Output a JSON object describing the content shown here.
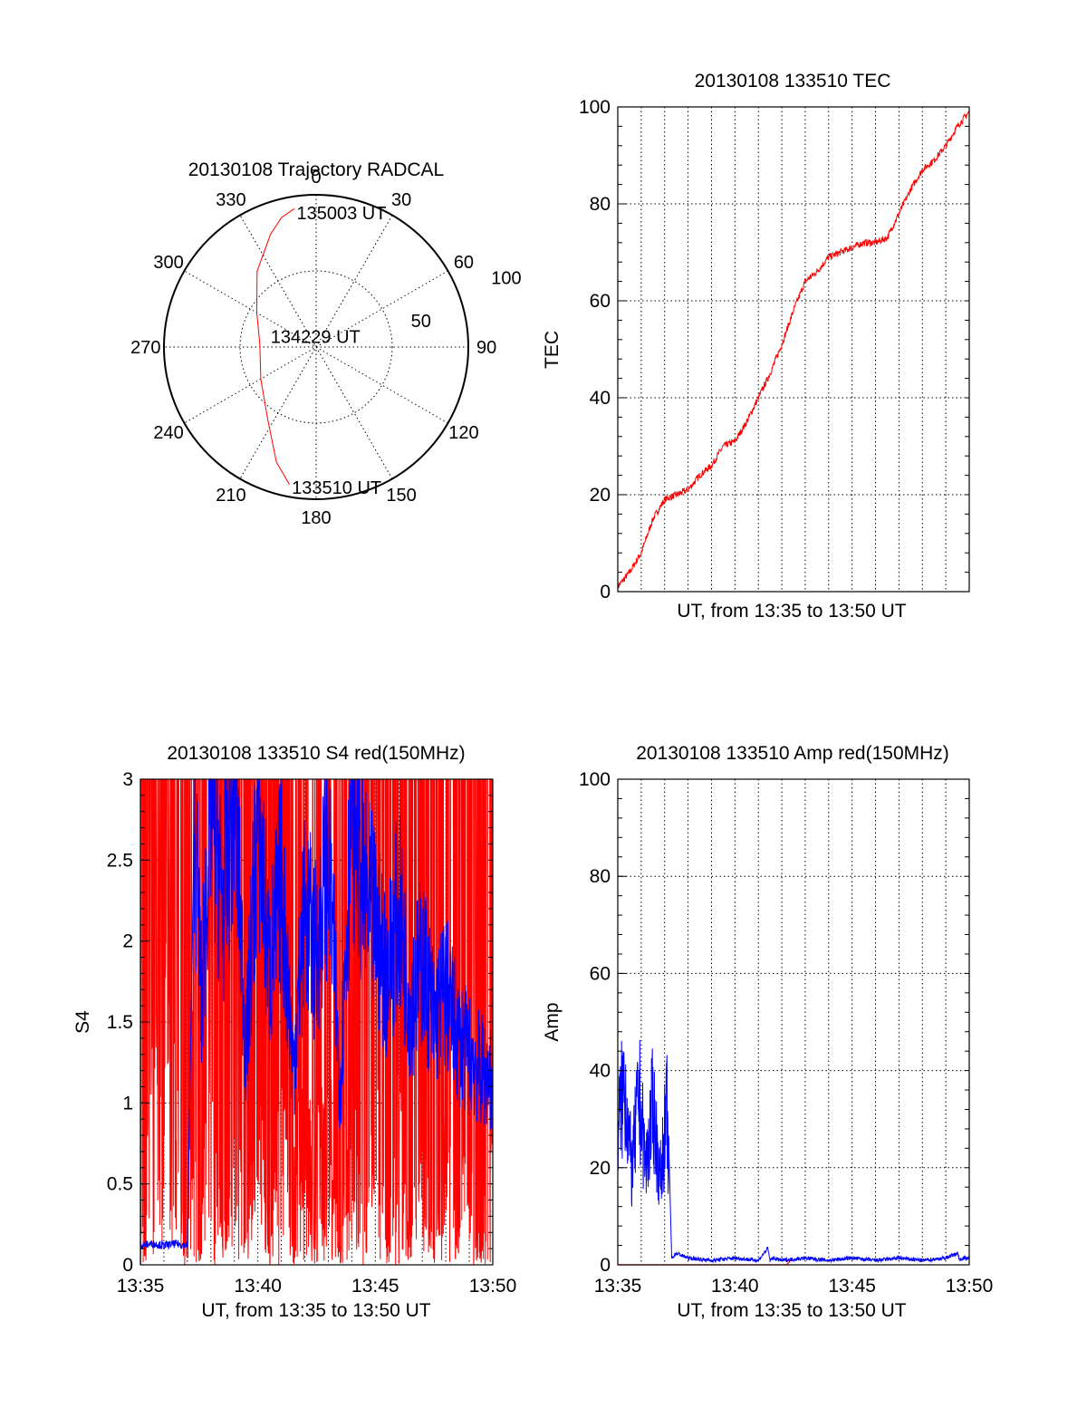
{
  "chart_data": [
    {
      "id": "trajectory",
      "type": "scatter",
      "projection": "polar",
      "title": "20130108 Trajectory RADCAL",
      "angle_labels": [
        "0",
        "30",
        "60",
        "90",
        "120",
        "150",
        "180",
        "210",
        "240",
        "270",
        "300",
        "330"
      ],
      "radius_labels": [
        "50",
        "100"
      ],
      "rlim": [
        0,
        100
      ],
      "grid": true,
      "series": [
        {
          "color": "#ff0000",
          "points": [
            {
              "az": 191,
              "r": 92
            },
            {
              "az": 199,
              "r": 80
            },
            {
              "az": 213,
              "r": 58
            },
            {
              "az": 240,
              "r": 42
            },
            {
              "az": 272,
              "r": 37
            },
            {
              "az": 300,
              "r": 45
            },
            {
              "az": 322,
              "r": 63
            },
            {
              "az": 338,
              "r": 80
            },
            {
              "az": 345,
              "r": 88
            },
            {
              "az": 351,
              "r": 92
            }
          ]
        }
      ],
      "annotations": [
        {
          "text": "135003 UT",
          "az": 352,
          "r": 92
        },
        {
          "text": "134229 UT",
          "az": 275,
          "r": 30
        },
        {
          "text": "133510 UT",
          "az": 190,
          "r": 92
        }
      ]
    },
    {
      "id": "tec",
      "type": "line",
      "title": "20130108 133510 TEC",
      "xlabel": "UT, from 13:35 to 13:50 UT",
      "ylabel": "TEC",
      "xlim": [
        0,
        15
      ],
      "ylim": [
        0,
        100
      ],
      "yticks": [
        "0",
        "20",
        "40",
        "60",
        "80",
        "100"
      ],
      "xticks": [],
      "grid": true,
      "series": [
        {
          "color": "#ff0000",
          "x": [
            0,
            0.5,
            1,
            1.5,
            2,
            2.5,
            3,
            3.5,
            4,
            4.5,
            5,
            5.5,
            6,
            6.5,
            7,
            7.5,
            8,
            8.5,
            9,
            9.5,
            10,
            10.5,
            11,
            11.5,
            12,
            12.5,
            13,
            13.5,
            14,
            14.5,
            15
          ],
          "y": [
            1,
            4,
            8,
            15,
            19,
            20,
            21,
            24,
            26,
            30,
            31,
            35,
            40,
            45,
            51,
            58,
            64,
            66,
            69,
            70,
            71,
            72,
            72,
            73,
            78,
            83,
            87,
            89,
            92,
            96,
            99
          ]
        }
      ]
    },
    {
      "id": "s4",
      "type": "line",
      "title": "20130108 133510 S4 red(150MHz)",
      "xlabel": "UT, from 13:35 to 13:50 UT",
      "ylabel": "S4",
      "xlim": [
        0,
        15
      ],
      "ylim": [
        0,
        3
      ],
      "xticks": [
        "13:35",
        "13:40",
        "13:45",
        "13:50"
      ],
      "yticks": [
        "0",
        "0.5",
        "1",
        "1.5",
        "2",
        "2.5",
        "3"
      ],
      "grid": true,
      "series": [
        {
          "color": "#ff0000",
          "x": [
            0,
            1,
            2,
            2.3,
            2.5,
            3,
            3.5,
            4,
            4.5,
            5,
            5.5,
            6,
            6.5,
            7,
            7.5,
            8,
            8.5,
            9,
            9.5,
            10,
            10.5,
            11,
            11.5,
            12,
            12.5,
            13,
            13.5,
            14,
            14.5,
            15
          ],
          "y": [
            0.1,
            3,
            0,
            3,
            0.4,
            3,
            0.2,
            3,
            0.6,
            3,
            0,
            3,
            0.3,
            3,
            0.1,
            3,
            0,
            3,
            0.5,
            3,
            0.1,
            3,
            0.2,
            3,
            0,
            3,
            0.4,
            3,
            0.1,
            3
          ]
        },
        {
          "color": "#0000ff",
          "x": [
            0,
            0.5,
            1,
            1.5,
            2,
            2.3,
            2.6,
            3,
            3.5,
            4,
            4.5,
            5,
            5.5,
            6,
            6.5,
            7,
            7.5,
            8,
            8.5,
            9,
            9.5,
            10,
            10.5,
            11,
            11.5,
            12,
            12.5,
            13,
            13.5,
            14,
            14.5,
            15
          ],
          "y": [
            0.12,
            0.13,
            0.12,
            0.13,
            0.12,
            2.8,
            1.6,
            3,
            2.2,
            3,
            1.3,
            2.8,
            1.8,
            2.4,
            1.2,
            2.2,
            1.9,
            2.6,
            1.1,
            2.9,
            2.3,
            2.1,
            1.8,
            2.2,
            1.6,
            1.9,
            1.5,
            1.7,
            1.4,
            1.3,
            1.2,
            1.15
          ]
        }
      ]
    },
    {
      "id": "amp",
      "type": "line",
      "title": "20130108 133510 Amp red(150MHz)",
      "xlabel": "UT, from 13:35 to 13:50 UT",
      "ylabel": "Amp",
      "xlim": [
        0,
        15
      ],
      "ylim": [
        0,
        100
      ],
      "xticks": [
        "13:35",
        "13:40",
        "13:45",
        "13:50"
      ],
      "yticks": [
        "0",
        "20",
        "40",
        "60",
        "80",
        "100"
      ],
      "grid": true,
      "series": [
        {
          "color": "#0000ff",
          "x": [
            0,
            0.3,
            0.6,
            0.9,
            1.2,
            1.5,
            1.8,
            2.1,
            2.2,
            2.3,
            2.5,
            3,
            4,
            5,
            6,
            6.4,
            6.5,
            6.6,
            7,
            8,
            9,
            10,
            11,
            12,
            13,
            14,
            14.5,
            14.6,
            14.7,
            15
          ],
          "y": [
            38,
            50,
            25,
            47,
            27,
            44,
            23,
            42,
            20,
            1,
            2,
            1,
            0.5,
            1,
            0.5,
            3,
            0.5,
            1,
            0.5,
            1,
            0.5,
            1,
            0.5,
            1,
            0.5,
            1,
            2,
            0.5,
            1,
            1
          ]
        },
        {
          "color": "#ff0000",
          "x": [
            0,
            2.2,
            7.2,
            7.4
          ],
          "y": [
            0,
            0,
            0,
            1
          ]
        }
      ]
    }
  ]
}
